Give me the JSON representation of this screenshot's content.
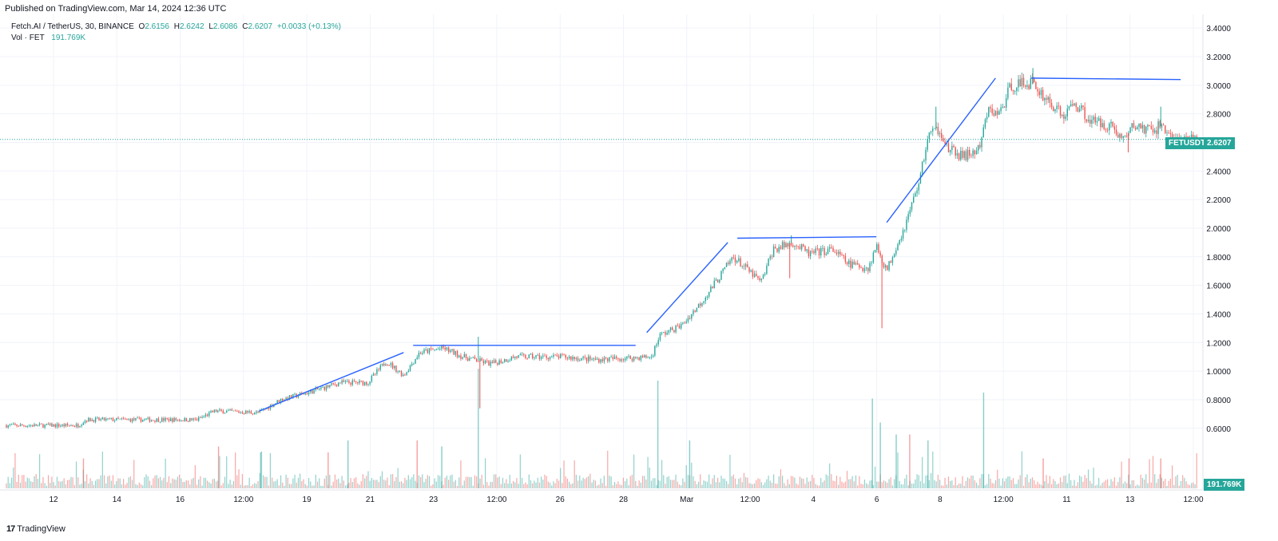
{
  "published": "Published on TradingView.com, Mar 14, 2024 12:36 UTC",
  "legend": {
    "symbol": "Fetch.AI / TetherUS, 30, BINANCE",
    "open_label": "O",
    "open": "2.6156",
    "high_label": "H",
    "high": "2.6242",
    "low_label": "L",
    "low": "2.6086",
    "close_label": "C",
    "close": "2.6207",
    "change": "+0.0033 (+0.13%)",
    "vol_label": "Vol · FET",
    "vol_value": "191.769K"
  },
  "price_tag": {
    "symbol": "FETUSDT",
    "price": "2.6207"
  },
  "volume_tag": "191.769K",
  "footer": {
    "logo_mark": "17",
    "brand": "TradingView"
  },
  "colors": {
    "up": "#26a69a",
    "down": "#ef5350",
    "trendline": "#2962ff",
    "grid": "#f0f3fa",
    "text": "#131722"
  },
  "chart_data": {
    "type": "candlestick",
    "title": "Fetch.AI / TetherUS, 30, BINANCE",
    "interval": "30",
    "y_axis": {
      "position": "right",
      "ticks": [
        "3.4000",
        "3.2000",
        "3.0000",
        "2.8000",
        "2.6000",
        "2.4000",
        "2.2000",
        "2.0000",
        "1.8000",
        "1.6000",
        "1.4000",
        "1.2000",
        "1.0000",
        "0.8000",
        "0.6000"
      ],
      "ylim": [
        0.42,
        3.44
      ]
    },
    "x_axis": {
      "ticks": [
        "12",
        "14",
        "16",
        "12:00",
        "19",
        "21",
        "23",
        "12:00",
        "26",
        "28",
        "Mar",
        "12:00",
        "4",
        "6",
        "8",
        "12:00",
        "11",
        "13",
        "12:00"
      ],
      "xlim": [
        0,
        1500
      ]
    },
    "grid": true,
    "price_anchors": [
      {
        "x": 0,
        "y": 0.62
      },
      {
        "x": 90,
        "y": 0.62
      },
      {
        "x": 100,
        "y": 0.66
      },
      {
        "x": 240,
        "y": 0.66
      },
      {
        "x": 262,
        "y": 0.72
      },
      {
        "x": 318,
        "y": 0.71
      },
      {
        "x": 345,
        "y": 0.8
      },
      {
        "x": 380,
        "y": 0.85
      },
      {
        "x": 420,
        "y": 0.92
      },
      {
        "x": 455,
        "y": 0.92
      },
      {
        "x": 478,
        "y": 1.07
      },
      {
        "x": 500,
        "y": 0.97
      },
      {
        "x": 520,
        "y": 1.13
      },
      {
        "x": 550,
        "y": 1.16
      },
      {
        "x": 575,
        "y": 1.1
      },
      {
        "x": 610,
        "y": 1.05
      },
      {
        "x": 640,
        "y": 1.1
      },
      {
        "x": 700,
        "y": 1.1
      },
      {
        "x": 740,
        "y": 1.08
      },
      {
        "x": 812,
        "y": 1.1
      },
      {
        "x": 822,
        "y": 1.25
      },
      {
        "x": 850,
        "y": 1.32
      },
      {
        "x": 870,
        "y": 1.45
      },
      {
        "x": 890,
        "y": 1.6
      },
      {
        "x": 915,
        "y": 1.8
      },
      {
        "x": 950,
        "y": 1.62
      },
      {
        "x": 965,
        "y": 1.85
      },
      {
        "x": 990,
        "y": 1.9
      },
      {
        "x": 1010,
        "y": 1.82
      },
      {
        "x": 1040,
        "y": 1.85
      },
      {
        "x": 1060,
        "y": 1.75
      },
      {
        "x": 1085,
        "y": 1.72
      },
      {
        "x": 1095,
        "y": 1.88
      },
      {
        "x": 1108,
        "y": 1.7
      },
      {
        "x": 1118,
        "y": 1.85
      },
      {
        "x": 1130,
        "y": 2.0
      },
      {
        "x": 1150,
        "y": 2.35
      },
      {
        "x": 1160,
        "y": 2.65
      },
      {
        "x": 1175,
        "y": 2.7
      },
      {
        "x": 1185,
        "y": 2.55
      },
      {
        "x": 1205,
        "y": 2.5
      },
      {
        "x": 1225,
        "y": 2.55
      },
      {
        "x": 1235,
        "y": 2.82
      },
      {
        "x": 1250,
        "y": 2.8
      },
      {
        "x": 1265,
        "y": 3.0
      },
      {
        "x": 1290,
        "y": 3.02
      },
      {
        "x": 1310,
        "y": 2.9
      },
      {
        "x": 1330,
        "y": 2.78
      },
      {
        "x": 1345,
        "y": 2.88
      },
      {
        "x": 1365,
        "y": 2.75
      },
      {
        "x": 1390,
        "y": 2.72
      },
      {
        "x": 1405,
        "y": 2.62
      },
      {
        "x": 1420,
        "y": 2.72
      },
      {
        "x": 1440,
        "y": 2.68
      },
      {
        "x": 1455,
        "y": 2.72
      },
      {
        "x": 1465,
        "y": 2.65
      },
      {
        "x": 1480,
        "y": 2.6
      },
      {
        "x": 1496,
        "y": 2.63
      }
    ],
    "spikes": [
      {
        "x": 594,
        "y": 1.24,
        "dir": "up"
      },
      {
        "x": 596,
        "y": 0.74,
        "dir": "down"
      },
      {
        "x": 988,
        "y": 1.95,
        "dir": "up"
      },
      {
        "x": 986,
        "y": 1.65,
        "dir": "down"
      },
      {
        "x": 1102,
        "y": 1.3,
        "dir": "down"
      },
      {
        "x": 1292,
        "y": 3.12,
        "dir": "up"
      },
      {
        "x": 1412,
        "y": 2.53,
        "dir": "down"
      },
      {
        "x": 1453,
        "y": 2.85,
        "dir": "up"
      },
      {
        "x": 1170,
        "y": 2.85,
        "dir": "up"
      }
    ],
    "volume_spikes": [
      {
        "x": 97,
        "v": 0.25
      },
      {
        "x": 267,
        "v": 0.35
      },
      {
        "x": 320,
        "v": 0.3
      },
      {
        "x": 405,
        "v": 0.3
      },
      {
        "x": 430,
        "v": 0.4
      },
      {
        "x": 517,
        "v": 0.4
      },
      {
        "x": 548,
        "v": 0.35
      },
      {
        "x": 594,
        "v": 1.0
      },
      {
        "x": 820,
        "v": 0.9
      },
      {
        "x": 860,
        "v": 0.4
      },
      {
        "x": 1090,
        "v": 0.75
      },
      {
        "x": 1100,
        "v": 0.55
      },
      {
        "x": 1120,
        "v": 0.45
      },
      {
        "x": 1137,
        "v": 0.45
      },
      {
        "x": 1160,
        "v": 0.4
      },
      {
        "x": 1230,
        "v": 0.8
      },
      {
        "x": 1305,
        "v": 0.25
      },
      {
        "x": 1413,
        "v": 0.25
      },
      {
        "x": 1453,
        "v": 0.25
      }
    ],
    "trendlines": [
      {
        "x1": 318,
        "y1": 0.72,
        "x2": 500,
        "y2": 1.13
      },
      {
        "x1": 512,
        "y1": 1.18,
        "x2": 792,
        "y2": 1.18
      },
      {
        "x1": 806,
        "y1": 1.27,
        "x2": 908,
        "y2": 1.9
      },
      {
        "x1": 920,
        "y1": 1.93,
        "x2": 1095,
        "y2": 1.94
      },
      {
        "x1": 1108,
        "y1": 2.04,
        "x2": 1245,
        "y2": 3.05
      },
      {
        "x1": 1290,
        "y1": 3.05,
        "x2": 1478,
        "y2": 3.04
      }
    ],
    "last_price": 2.6207
  }
}
